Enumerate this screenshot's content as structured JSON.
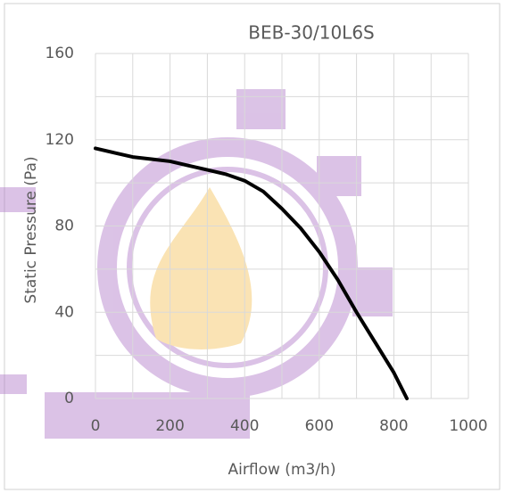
{
  "chart_data": {
    "type": "line",
    "title": "BEB-30/10L6S",
    "x_label": "Airflow (m3/h)",
    "y_label": "Static Pressure (Pa)",
    "series": [
      {
        "name": "BEB-30/10L6S",
        "color": "#000000",
        "x": [
          0,
          50,
          100,
          150,
          200,
          250,
          300,
          350,
          400,
          450,
          500,
          550,
          600,
          650,
          700,
          750,
          800,
          835
        ],
        "values": [
          116,
          114,
          112,
          111,
          110,
          108,
          106,
          104,
          101,
          96,
          88,
          79,
          68,
          55,
          40,
          26,
          12,
          0
        ]
      }
    ],
    "xlim": [
      0,
      1000
    ],
    "xticks": [
      0,
      200,
      400,
      600,
      800,
      1000
    ],
    "ylim": [
      0,
      160
    ],
    "yticks": [
      0,
      40,
      80,
      120,
      160
    ],
    "xgrid": [
      0,
      100,
      200,
      300,
      400,
      500,
      600,
      700,
      800,
      900,
      1000
    ],
    "ygrid": [
      0,
      20,
      40,
      60,
      80,
      100,
      120,
      140,
      160
    ],
    "grid": true
  }
}
